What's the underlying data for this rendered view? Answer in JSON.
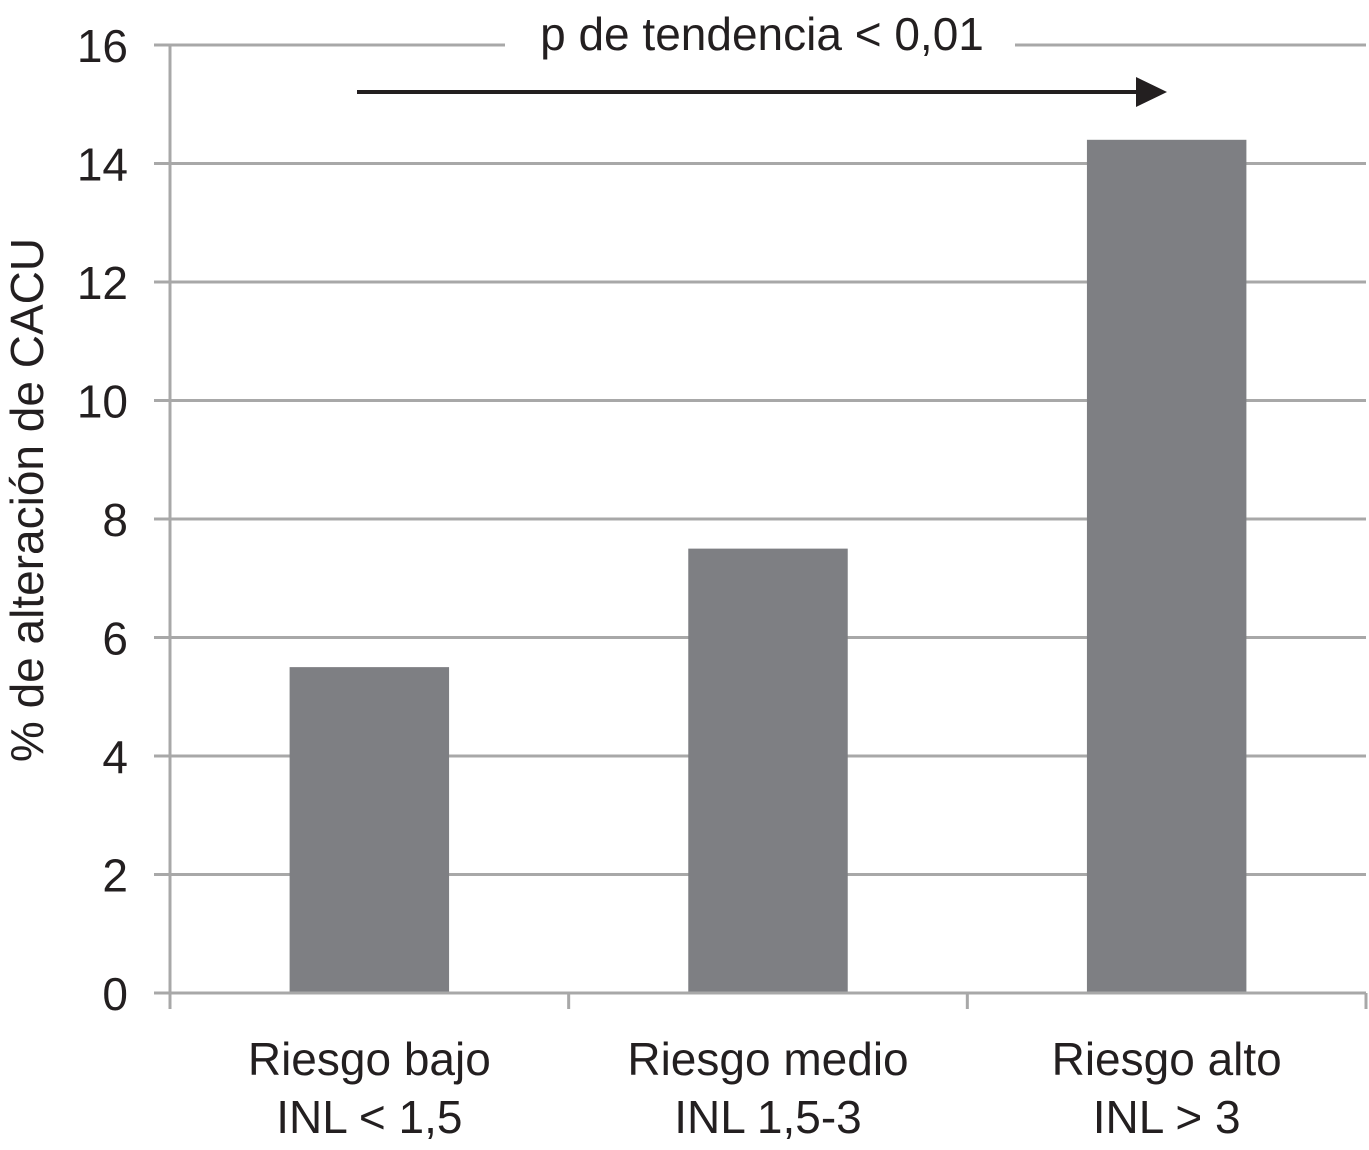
{
  "chart_data": {
    "type": "bar",
    "categories": [
      [
        "Riesgo bajo",
        "INL < 1,5"
      ],
      [
        "Riesgo medio",
        "INL 1,5-3"
      ],
      [
        "Riesgo alto",
        "INL > 3"
      ]
    ],
    "values": [
      5.5,
      7.5,
      14.4
    ],
    "ylabel": "% de alteración de CACU",
    "ylim": [
      0,
      16
    ],
    "yticks": [
      0,
      2,
      4,
      6,
      8,
      10,
      12,
      14,
      16
    ],
    "grid": true,
    "annotation": "p de tendencia < 0,01",
    "colors": {
      "bar": "#7e7f83",
      "grid": "#a8a8a8",
      "text": "#231f20",
      "arrow": "#231f20"
    }
  }
}
